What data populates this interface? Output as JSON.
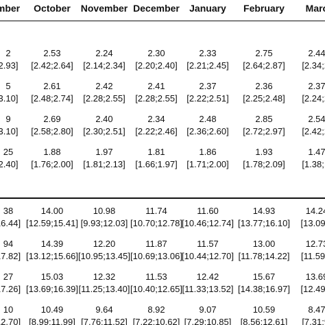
{
  "columns": [
    "mber",
    "October",
    "November",
    "December",
    "January",
    "February",
    "Marc"
  ],
  "section1": [
    {
      "values": [
        "2",
        "2.53",
        "2.24",
        "2.30",
        "2.33",
        "2.75",
        "2.44"
      ],
      "cis": [
        "2.93]",
        "[2.42;2.64]",
        "[2.14;2.34]",
        "[2.20;2.40]",
        "[2.21;2.45]",
        "[2.64;2.87]",
        "[2.34;2."
      ]
    },
    {
      "values": [
        "5",
        "2.61",
        "2.42",
        "2.41",
        "2.37",
        "2.36",
        "2.37"
      ],
      "cis": [
        "3.10]",
        "[2.48;2.74]",
        "[2.28;2.55]",
        "[2.28;2.55]",
        "[2.22;2.51]",
        "[2.25;2.48]",
        "[2.24;2."
      ]
    },
    {
      "values": [
        "9",
        "2.69",
        "2.40",
        "2.34",
        "2.48",
        "2.85",
        "2.54"
      ],
      "cis": [
        "3.10]",
        "[2.58;2.80]",
        "[2.30;2.51]",
        "[2.22;2.46]",
        "[2.36;2.60]",
        "[2.72;2.97]",
        "[2.42;2."
      ]
    },
    {
      "values": [
        "25",
        "1.88",
        "1.97",
        "1.81",
        "1.86",
        "1.93",
        "1.47"
      ],
      "cis": [
        "2.40]",
        "[1.76;2.00]",
        "[1.81;2.13]",
        "[1.66;1.97]",
        "[1.71;2.00]",
        "[1.78;2.09]",
        "[1.38;1."
      ]
    }
  ],
  "section2": [
    {
      "values": [
        "38",
        "14.00",
        "10.98",
        "11.74",
        "11.60",
        "14.93",
        "14.24"
      ],
      "cis": [
        "16.44]",
        "[12.59;15.41]",
        "[9.93;12.03]",
        "[10.70;12.78]",
        "[10.46;12.74]",
        "[13.77;16.10]",
        "[13.09;1"
      ]
    },
    {
      "values": [
        "94",
        "14.39",
        "12.20",
        "11.87",
        "11.57",
        "13.00",
        "12.73"
      ],
      "cis": [
        "17.82]",
        "[13.12;15.66]",
        "[10.95;13.45]",
        "[10.69;13.06]",
        "[10.44;12.70]",
        "[11.78;14.22]",
        "[11.59;1"
      ]
    },
    {
      "values": [
        "27",
        "15.03",
        "12.32",
        "11.53",
        "12.42",
        "15.67",
        "13.69"
      ],
      "cis": [
        "17.26]",
        "[13.69;16.39]",
        "[11.25;13.40]",
        "[10.40;12.65]",
        "[11.33;13.52]",
        "[14.38;16.97]",
        "[12.49;1"
      ]
    },
    {
      "values": [
        "10",
        "10.49",
        "9.64",
        "8.92",
        "9.07",
        "10.59",
        "8.47"
      ],
      "cis": [
        "12.70]",
        "[8.99;11.99]",
        "[7.76;11.52]",
        "[7.22;10.62]",
        "[7.29;10.85]",
        "[8.56;12.61]",
        "[7.31;9."
      ]
    }
  ]
}
